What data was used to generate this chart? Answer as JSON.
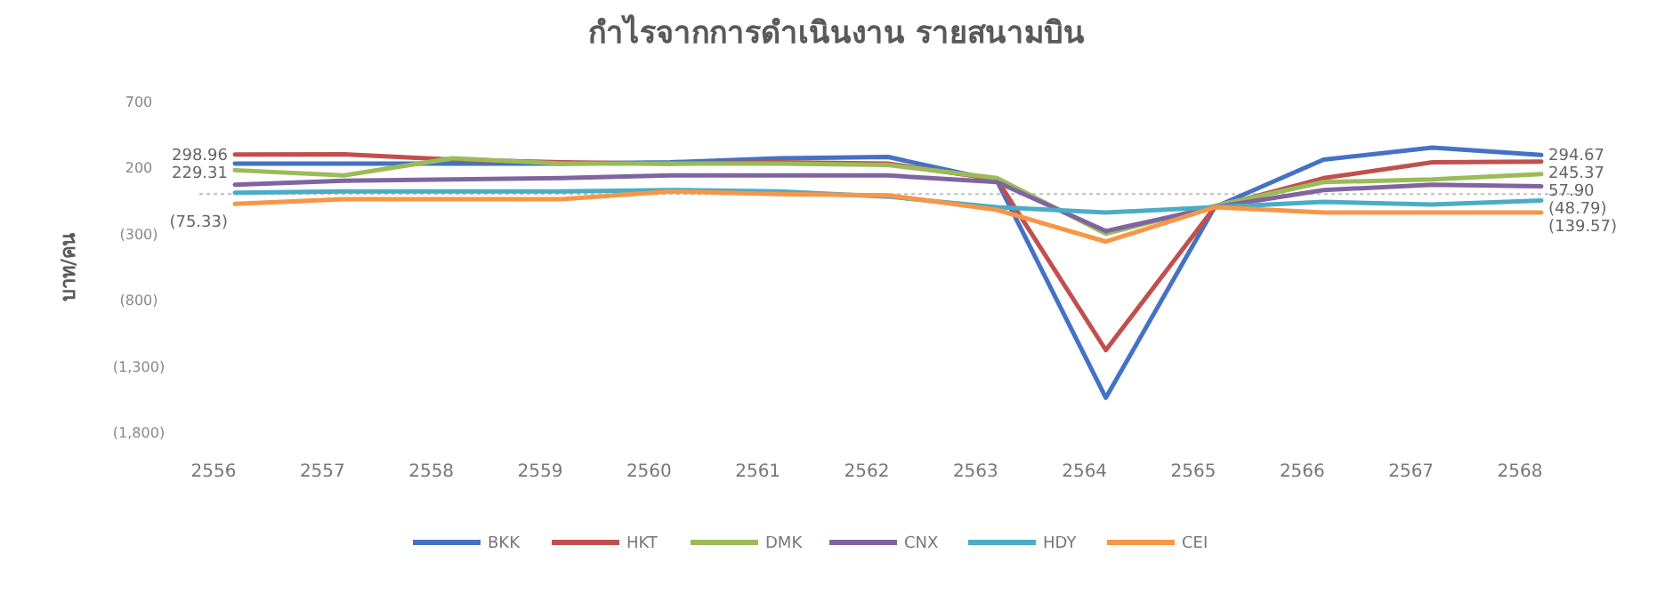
{
  "chart_data": {
    "type": "line",
    "title": "กำไรจากการดำเนินงาน รายสนามบิน",
    "ylabel": "บาท/คน",
    "categories": [
      "2556",
      "2557",
      "2558",
      "2559",
      "2560",
      "2561",
      "2562",
      "2563",
      "2564",
      "2565",
      "2566",
      "2567",
      "2568"
    ],
    "ylim": [
      -1800,
      700
    ],
    "yticks": [
      700,
      200,
      {
        "value": -300,
        "label": "(300)"
      },
      {
        "value": -800,
        "label": "(800)"
      },
      {
        "value": -1300,
        "label": "(1,300)"
      },
      {
        "value": -1800,
        "label": "(1,800)"
      }
    ],
    "grid": false,
    "legend": "bottom",
    "marker": "none",
    "line_style": "solid",
    "ref_lines": [
      {
        "axis": "y",
        "value": 0,
        "line_style": "dotted",
        "color": "#bfbfbf"
      }
    ],
    "series": [
      {
        "name": "BKK",
        "color": "#4472c4",
        "values": [
          229.31,
          230,
          230,
          230,
          240,
          270,
          280,
          100,
          -1540,
          -100,
          260,
          350,
          294.67
        ],
        "value_labels": [
          "229.31",
          null,
          null,
          null,
          null,
          null,
          null,
          null,
          null,
          null,
          null,
          null,
          "294.67"
        ]
      },
      {
        "name": "HKT",
        "color": "#c0504d",
        "values": [
          298.96,
          300,
          260,
          240,
          230,
          240,
          230,
          110,
          -1180,
          -100,
          120,
          240,
          245.37
        ],
        "value_labels": [
          "298.96",
          null,
          null,
          null,
          null,
          null,
          null,
          null,
          null,
          null,
          null,
          null,
          "245.37"
        ]
      },
      {
        "name": "DMK",
        "color": "#9bbb59",
        "values": [
          180,
          140,
          270,
          230,
          230,
          230,
          220,
          120,
          -300,
          -90,
          90,
          110,
          150
        ]
      },
      {
        "name": "CNX",
        "color": "#8064a2",
        "values": [
          70,
          100,
          110,
          120,
          140,
          140,
          140,
          90,
          -280,
          -100,
          30,
          70,
          57.9
        ],
        "value_labels": [
          null,
          null,
          null,
          null,
          null,
          null,
          null,
          null,
          null,
          null,
          null,
          null,
          "57.90"
        ]
      },
      {
        "name": "HDY",
        "color": "#4bacc6",
        "values": [
          10,
          20,
          20,
          20,
          30,
          20,
          -20,
          -100,
          -140,
          -100,
          -60,
          -80,
          -48.79
        ],
        "value_labels": [
          null,
          null,
          null,
          null,
          null,
          null,
          null,
          null,
          null,
          null,
          null,
          null,
          "(48.79)"
        ]
      },
      {
        "name": "CEI",
        "color": "#f79646",
        "values": [
          -75.33,
          -40,
          -40,
          -40,
          20,
          0,
          -10,
          -120,
          -360,
          -100,
          -140,
          -140,
          -139.57
        ],
        "value_labels": [
          "(75.33)",
          null,
          null,
          null,
          null,
          null,
          null,
          null,
          null,
          null,
          null,
          null,
          "(139.57)"
        ]
      }
    ]
  }
}
